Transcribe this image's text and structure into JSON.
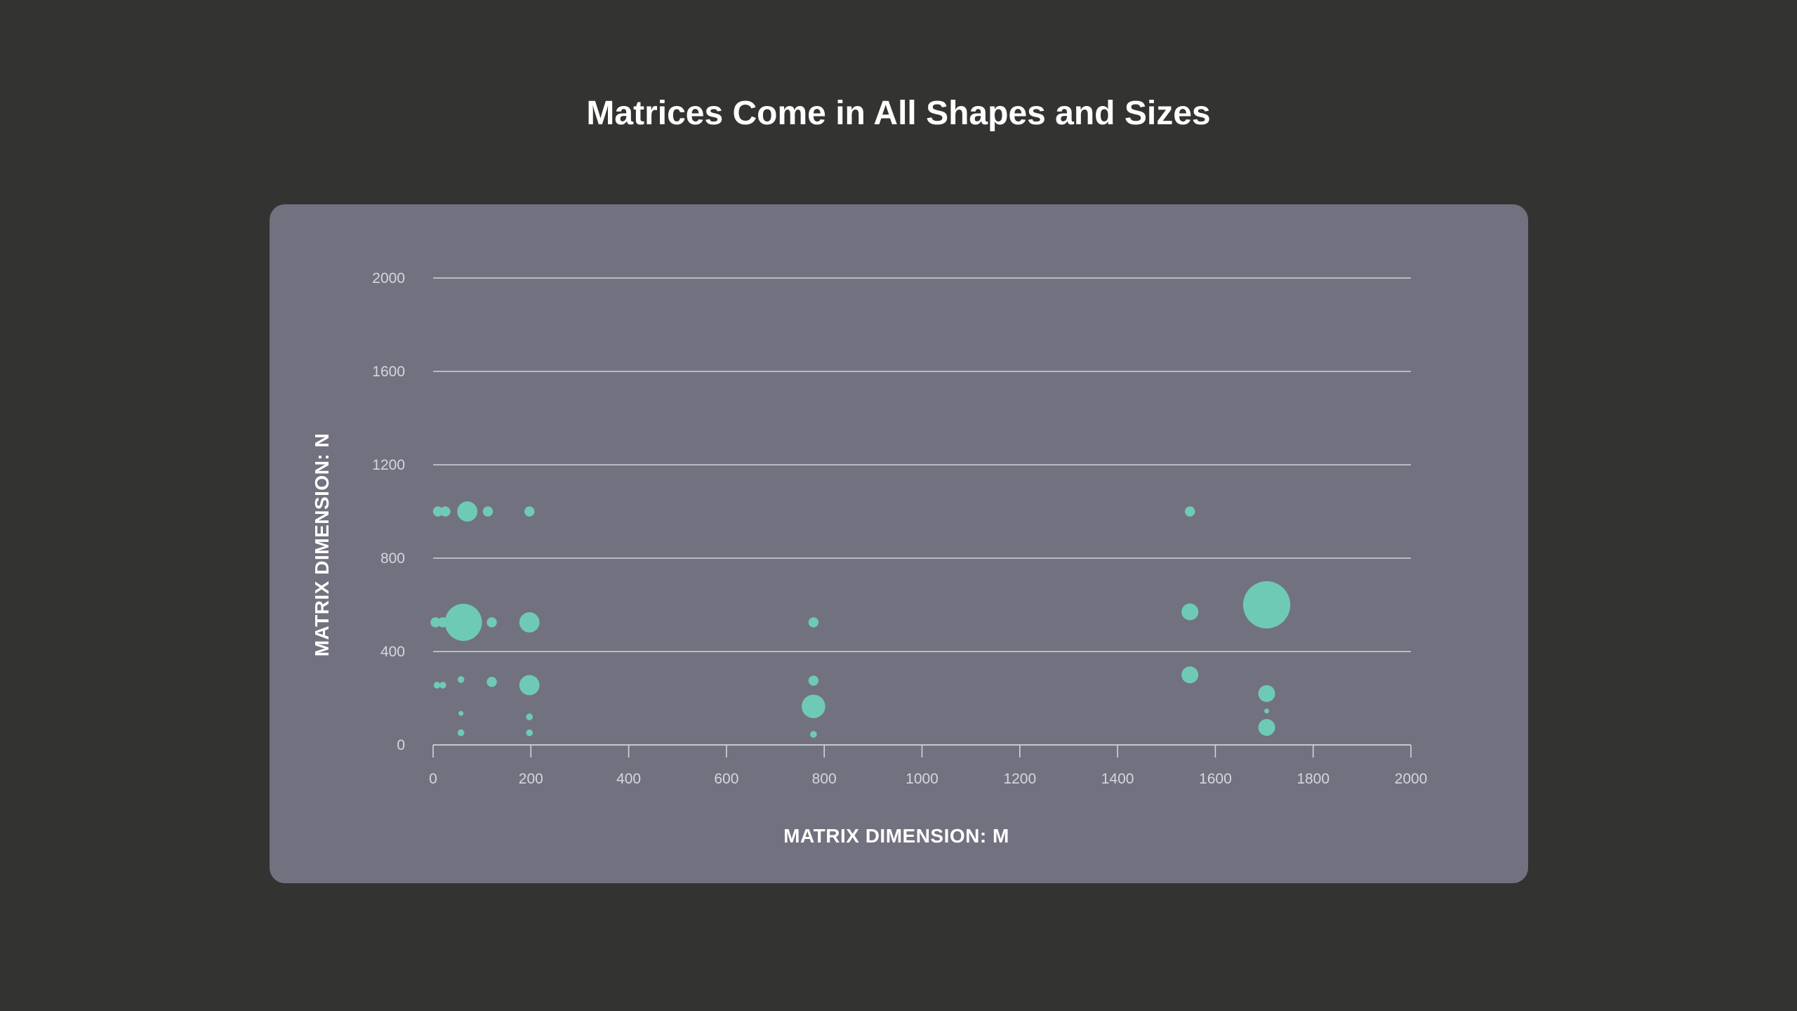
{
  "page": {
    "title": "Matrices Come in All Shapes and Sizes"
  },
  "colors": {
    "background": "#333331",
    "panel": "#72717f",
    "bubble": "#6fcab5",
    "gridline": "#d2d2da",
    "tick_text": "#d6d6de",
    "title_text": "#ffffff"
  },
  "chart_data": {
    "type": "scatter",
    "variant": "bubble",
    "title": "Matrices Come in All Shapes and Sizes",
    "xlabel": "MATRIX DIMENSION: M",
    "ylabel": "MATRIX DIMENSION: N",
    "xlim": [
      0,
      2000
    ],
    "ylim": [
      0,
      2000
    ],
    "x_ticks": [
      "0",
      "200",
      "400",
      "600",
      "800",
      "1000",
      "1200",
      "1400",
      "1600",
      "1800",
      "2000"
    ],
    "y_ticks": [
      "0",
      "400",
      "800",
      "1200",
      "1600",
      "2000"
    ],
    "grid": "horizontal",
    "legend": "none",
    "points": [
      {
        "x": 10,
        "y": 1000,
        "size": 3
      },
      {
        "x": 25,
        "y": 1000,
        "size": 3
      },
      {
        "x": 70,
        "y": 1000,
        "size": 6
      },
      {
        "x": 112,
        "y": 1000,
        "size": 3
      },
      {
        "x": 197,
        "y": 1000,
        "size": 3
      },
      {
        "x": 1548,
        "y": 1000,
        "size": 3
      },
      {
        "x": 5,
        "y": 525,
        "size": 3
      },
      {
        "x": 20,
        "y": 525,
        "size": 3
      },
      {
        "x": 62,
        "y": 525,
        "size": 11
      },
      {
        "x": 120,
        "y": 525,
        "size": 3
      },
      {
        "x": 197,
        "y": 525,
        "size": 6
      },
      {
        "x": 778,
        "y": 525,
        "size": 3
      },
      {
        "x": 1548,
        "y": 570,
        "size": 5
      },
      {
        "x": 1705,
        "y": 600,
        "size": 14
      },
      {
        "x": 8,
        "y": 256,
        "size": 2
      },
      {
        "x": 20,
        "y": 256,
        "size": 2
      },
      {
        "x": 57,
        "y": 280,
        "size": 2
      },
      {
        "x": 120,
        "y": 270,
        "size": 3
      },
      {
        "x": 197,
        "y": 256,
        "size": 6
      },
      {
        "x": 778,
        "y": 275,
        "size": 3
      },
      {
        "x": 778,
        "y": 165,
        "size": 7
      },
      {
        "x": 778,
        "y": 45,
        "size": 2
      },
      {
        "x": 57,
        "y": 135,
        "size": 1
      },
      {
        "x": 197,
        "y": 120,
        "size": 2
      },
      {
        "x": 57,
        "y": 52,
        "size": 2
      },
      {
        "x": 197,
        "y": 52,
        "size": 2
      },
      {
        "x": 1548,
        "y": 300,
        "size": 5
      },
      {
        "x": 1705,
        "y": 220,
        "size": 5
      },
      {
        "x": 1705,
        "y": 145,
        "size": 1
      },
      {
        "x": 1705,
        "y": 75,
        "size": 5
      }
    ]
  }
}
